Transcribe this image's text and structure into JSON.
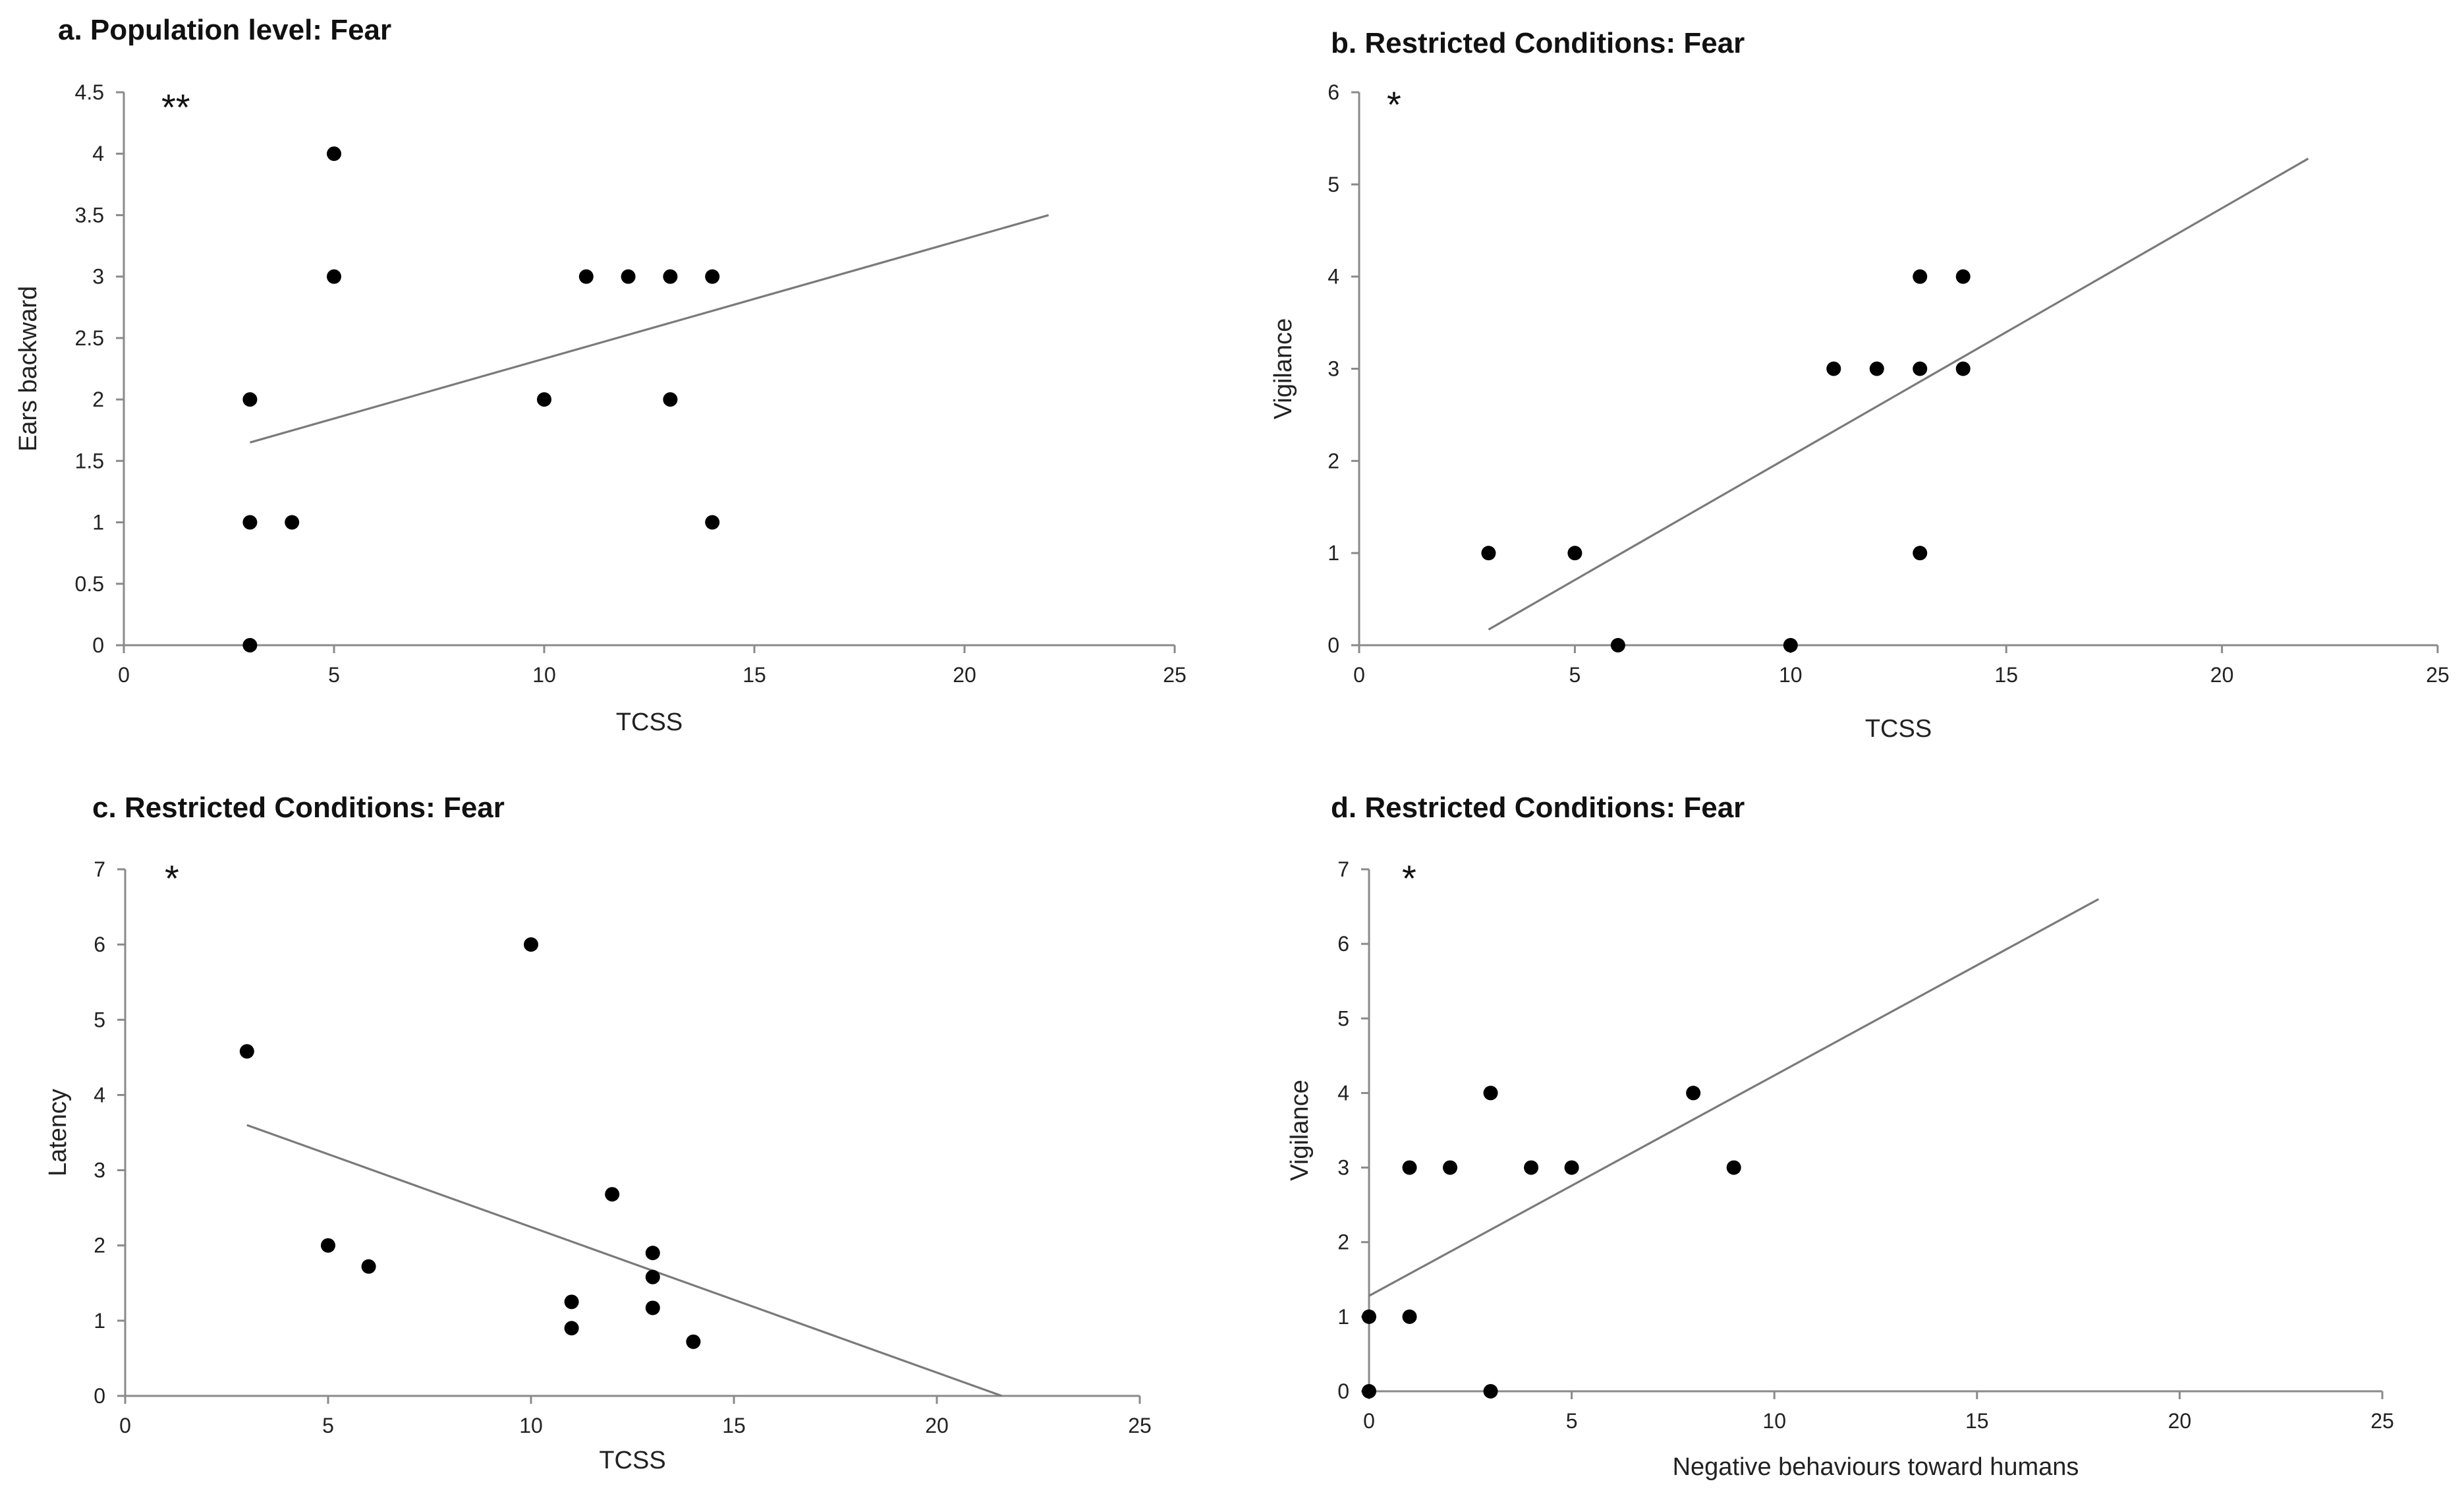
{
  "chart_data": [
    {
      "id": "a",
      "type": "scatter",
      "title": "a. Population level: Fear",
      "xlabel": "TCSS",
      "ylabel": "Ears backward",
      "xlim": [
        0,
        25
      ],
      "ylim": [
        0,
        4.5
      ],
      "xticks": [
        "0",
        "5",
        "10",
        "15",
        "20",
        "25"
      ],
      "yticks": [
        "0",
        "0.5",
        "1",
        "1.5",
        "2",
        "2.5",
        "3",
        "3.5",
        "4",
        "4.5"
      ],
      "significance": "**",
      "points": [
        [
          3,
          0
        ],
        [
          3,
          1
        ],
        [
          3,
          2
        ],
        [
          4,
          1
        ],
        [
          5,
          3
        ],
        [
          5,
          4
        ],
        [
          10,
          2
        ],
        [
          11,
          3
        ],
        [
          12,
          3
        ],
        [
          13,
          3
        ],
        [
          13,
          2
        ],
        [
          14,
          3
        ],
        [
          14,
          1
        ]
      ],
      "trendline": [
        [
          3,
          1.65
        ],
        [
          22,
          3.5
        ]
      ]
    },
    {
      "id": "b",
      "type": "scatter",
      "title": "b. Restricted Conditions: Fear",
      "xlabel": "TCSS",
      "ylabel": "Vigilance",
      "xlim": [
        0,
        25
      ],
      "ylim": [
        0,
        6
      ],
      "xticks": [
        "0",
        "5",
        "10",
        "15",
        "20",
        "25"
      ],
      "yticks": [
        "0",
        "1",
        "2",
        "3",
        "4",
        "5",
        "6"
      ],
      "significance": "*",
      "points": [
        [
          3,
          1
        ],
        [
          5,
          1
        ],
        [
          6,
          0
        ],
        [
          10,
          0
        ],
        [
          11,
          3
        ],
        [
          12,
          3
        ],
        [
          13,
          4
        ],
        [
          13,
          3
        ],
        [
          13,
          1
        ],
        [
          14,
          4
        ],
        [
          14,
          3
        ]
      ],
      "trendline": [
        [
          3,
          0.17
        ],
        [
          22,
          5.28
        ]
      ]
    },
    {
      "id": "c",
      "type": "scatter",
      "title": "c. Restricted Conditions: Fear",
      "xlabel": "TCSS",
      "ylabel": "Latency",
      "xlim": [
        0,
        25
      ],
      "ylim": [
        0,
        7
      ],
      "xticks": [
        "0",
        "5",
        "10",
        "15",
        "20",
        "25"
      ],
      "yticks": [
        "0",
        "1",
        "2",
        "3",
        "4",
        "5",
        "6",
        "7"
      ],
      "significance": "*",
      "points": [
        [
          3,
          4.58
        ],
        [
          5,
          2.0
        ],
        [
          6,
          1.72
        ],
        [
          10,
          6.0
        ],
        [
          11,
          1.25
        ],
        [
          11,
          0.9
        ],
        [
          12,
          2.68
        ],
        [
          13,
          1.9
        ],
        [
          13,
          1.58
        ],
        [
          13,
          1.17
        ],
        [
          14,
          0.72
        ]
      ],
      "trendline": [
        [
          3,
          3.6
        ],
        [
          21.6,
          0
        ]
      ]
    },
    {
      "id": "d",
      "type": "scatter",
      "title": "d. Restricted Conditions: Fear",
      "xlabel": "Negative behaviours toward humans",
      "ylabel": "Vigilance",
      "xlim": [
        0,
        25
      ],
      "ylim": [
        0,
        7
      ],
      "xticks": [
        "0",
        "5",
        "10",
        "15",
        "20",
        "25"
      ],
      "yticks": [
        "0",
        "1",
        "2",
        "3",
        "4",
        "5",
        "6",
        "7"
      ],
      "significance": "*",
      "points": [
        [
          0,
          0
        ],
        [
          0,
          1
        ],
        [
          1,
          1
        ],
        [
          1,
          3
        ],
        [
          2,
          3
        ],
        [
          3,
          4
        ],
        [
          3,
          0
        ],
        [
          4,
          3
        ],
        [
          5,
          3
        ],
        [
          8,
          4
        ],
        [
          9,
          3
        ]
      ],
      "trendline": [
        [
          0,
          1.28
        ],
        [
          18,
          6.6
        ]
      ]
    }
  ]
}
